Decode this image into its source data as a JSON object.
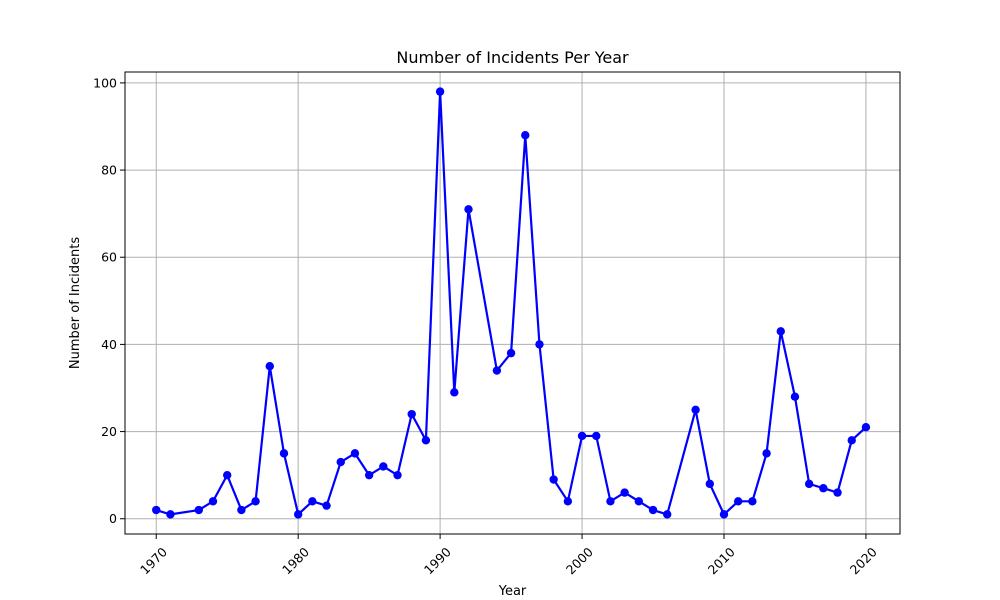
{
  "chart_data": {
    "type": "line",
    "title": "Number of Incidents Per Year",
    "xlabel": "Year",
    "ylabel": "Number of Incidents",
    "xlim": [
      1967.8,
      2022.4
    ],
    "ylim": [
      -3.5,
      102.5
    ],
    "x_ticks": [
      1970,
      1980,
      1990,
      2000,
      2010,
      2020
    ],
    "y_ticks": [
      0,
      20,
      40,
      60,
      80,
      100
    ],
    "grid": true,
    "legend": "none",
    "series": [
      {
        "color": "#0000ff",
        "marker": "circle",
        "x": [
          1970,
          1971,
          1973,
          1974,
          1975,
          1976,
          1977,
          1978,
          1979,
          1980,
          1981,
          1982,
          1983,
          1984,
          1985,
          1986,
          1987,
          1988,
          1989,
          1990,
          1991,
          1992,
          1994,
          1995,
          1996,
          1997,
          1998,
          1999,
          2000,
          2001,
          2002,
          2003,
          2004,
          2005,
          2006,
          2008,
          2009,
          2010,
          2011,
          2012,
          2013,
          2014,
          2015,
          2016,
          2017,
          2018,
          2019,
          2020
        ],
        "y": [
          2,
          1,
          2,
          4,
          10,
          2,
          4,
          35,
          15,
          1,
          4,
          3,
          13,
          15,
          10,
          12,
          10,
          24,
          18,
          98,
          29,
          71,
          34,
          38,
          88,
          40,
          9,
          4,
          19,
          19,
          4,
          6,
          4,
          2,
          1,
          25,
          8,
          1,
          4,
          4,
          15,
          43,
          28,
          8,
          7,
          6,
          18,
          21
        ]
      }
    ]
  }
}
